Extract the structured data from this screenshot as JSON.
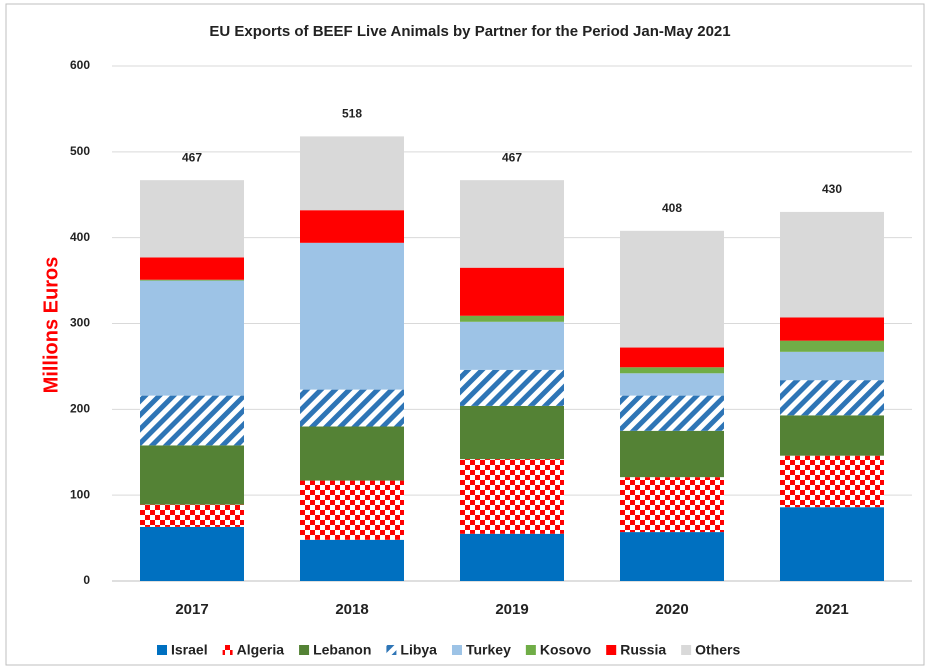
{
  "chart_data": {
    "type": "stacked_bar",
    "title": "EU Exports of BEEF Live Animals by Partner for the Period Jan-May 2021",
    "y_label": "Millions Euros",
    "categories": [
      "2017",
      "2018",
      "2019",
      "2020",
      "2021"
    ],
    "totals": [
      467,
      518,
      467,
      408,
      430
    ],
    "series": [
      {
        "name": "Israel",
        "color": "#0070c0",
        "values": [
          63,
          48,
          55,
          57,
          86
        ]
      },
      {
        "name": "Algeria",
        "color": "#ff0000",
        "pattern": "checker",
        "values": [
          26,
          69,
          87,
          64,
          60
        ]
      },
      {
        "name": "Lebanon",
        "color": "#548235",
        "values": [
          69,
          63,
          62,
          54,
          47
        ]
      },
      {
        "name": "Libya",
        "color": "#2e75b6",
        "pattern": "stripes",
        "values": [
          58,
          43,
          42,
          41,
          41
        ]
      },
      {
        "name": "Turkey",
        "color": "#9dc3e6",
        "values": [
          134,
          171,
          56,
          26,
          33
        ]
      },
      {
        "name": "Kosovo",
        "color": "#70ad47",
        "values": [
          1,
          0,
          7,
          7,
          13
        ]
      },
      {
        "name": "Russia",
        "color": "#ff0000",
        "values": [
          26,
          38,
          56,
          23,
          27
        ]
      },
      {
        "name": "Others",
        "color": "#d9d9d9",
        "values": [
          90,
          86,
          102,
          136,
          123
        ]
      }
    ],
    "ylim": [
      0,
      600
    ],
    "yticks": [
      0,
      100,
      200,
      300,
      400,
      500,
      600
    ],
    "grid": true
  }
}
